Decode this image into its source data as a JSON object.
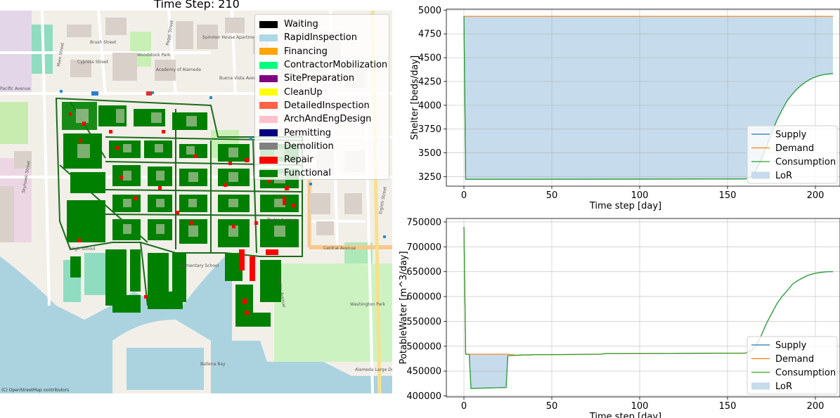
{
  "map": {
    "title": "Time Step: 210",
    "attribution": "(C) OpenStreetMap contributors",
    "street_labels": [
      "Brush Street",
      "Cypress Street",
      "Pacific Avenue",
      "Buena Vista Avenue",
      "Central Avenue",
      "Main Street",
      "Skyhawk Street",
      "High School",
      "Elementary School",
      "Washington Park",
      "Alameda Large Dog Park",
      "Ballena Bay",
      "Academy of Alameda",
      "Woodstock Park",
      "Summer House Apartments",
      "Eighth Street",
      "Poggi Street",
      "McKay Avenue",
      "Taylor Avenue"
    ],
    "legend": [
      {
        "label": "Waiting",
        "color": "#000000"
      },
      {
        "label": "RapidInspection",
        "color": "#add8e6"
      },
      {
        "label": "Financing",
        "color": "#ffa500"
      },
      {
        "label": "ContractorMobilization",
        "color": "#00ff7f"
      },
      {
        "label": "SitePreparation",
        "color": "#800080"
      },
      {
        "label": "CleanUp",
        "color": "#ffff00"
      },
      {
        "label": "DetailedInspection",
        "color": "#ff6347"
      },
      {
        "label": "ArchAndEngDesign",
        "color": "#ffc0cb"
      },
      {
        "label": "Permitting",
        "color": "#000080"
      },
      {
        "label": "Demolition",
        "color": "#808080"
      },
      {
        "label": "Repair",
        "color": "#ff0000"
      },
      {
        "label": "Functional",
        "color": "#008000"
      }
    ]
  },
  "chart_data": [
    {
      "type": "line",
      "xlabel": "Time step [day]",
      "ylabel": "Shelter [beds/day]",
      "xlim": [
        -10,
        214
      ],
      "ylim": [
        3150,
        5010
      ],
      "xticks": [
        0,
        50,
        100,
        150,
        200
      ],
      "yticks": [
        3250,
        3500,
        3750,
        4000,
        4250,
        4500,
        4750,
        5000
      ],
      "grid": true,
      "legend_position": "lower-right",
      "series": [
        {
          "name": "Supply",
          "color": "#1f77b4",
          "x": [
            0,
            1,
            160,
            163,
            166,
            169,
            172,
            175,
            178,
            181,
            184,
            187,
            190,
            193,
            196,
            199,
            202,
            205,
            208,
            210
          ],
          "y": [
            4935,
            3222,
            3225,
            3245,
            3310,
            3420,
            3560,
            3700,
            3840,
            3950,
            4050,
            4120,
            4180,
            4225,
            4262,
            4290,
            4310,
            4322,
            4330,
            4332
          ]
        },
        {
          "name": "Demand",
          "color": "#ff7f0e",
          "x": [
            0,
            210
          ],
          "y": [
            4935,
            4935
          ]
        },
        {
          "name": "Consumption",
          "color": "#2ca02c",
          "x": [
            0,
            1,
            160,
            163,
            166,
            169,
            172,
            175,
            178,
            181,
            184,
            187,
            190,
            193,
            196,
            199,
            202,
            205,
            208,
            210
          ],
          "y": [
            4935,
            3222,
            3225,
            3245,
            3310,
            3420,
            3560,
            3700,
            3840,
            3950,
            4050,
            4120,
            4180,
            4225,
            4262,
            4290,
            4310,
            4322,
            4330,
            4332
          ]
        }
      ],
      "lor": {
        "name": "LoR",
        "color": "#c6dbeb",
        "x_from": 0,
        "x_to": 210
      }
    },
    {
      "type": "line",
      "xlabel": "Time step [day]",
      "ylabel": "PotableWater [m^3/day]",
      "xlim": [
        -10,
        214
      ],
      "ylim": [
        398000,
        757000
      ],
      "xticks": [
        0,
        50,
        100,
        150,
        200
      ],
      "yticks": [
        400000,
        450000,
        500000,
        550000,
        600000,
        650000,
        700000,
        750000
      ],
      "grid": true,
      "legend_position": "lower-right",
      "series": [
        {
          "name": "Supply",
          "color": "#1f77b4",
          "x": [
            0,
            1,
            3,
            4,
            24,
            25,
            30,
            40,
            78,
            80,
            160,
            163,
            166,
            169,
            172,
            175,
            178,
            181,
            184,
            187,
            190,
            193,
            196,
            199,
            202,
            205,
            208,
            210
          ],
          "y": [
            740000,
            484000,
            484000,
            415000,
            417000,
            481000,
            482000,
            483000,
            484000,
            485000,
            486000,
            490000,
            500000,
            520000,
            545000,
            565000,
            585000,
            600000,
            612000,
            625000,
            632000,
            638000,
            643000,
            646000,
            648000,
            649500,
            650000,
            650000
          ]
        },
        {
          "name": "Demand",
          "color": "#ff7f0e",
          "x": [
            0,
            1,
            25,
            30,
            40,
            78,
            80,
            160
          ],
          "y": [
            740000,
            484000,
            484000,
            482000,
            483000,
            484000,
            485000,
            486000
          ]
        },
        {
          "name": "Consumption",
          "color": "#2ca02c",
          "x": [
            0,
            1,
            3,
            4,
            24,
            25,
            30,
            40,
            78,
            80,
            160,
            163,
            166,
            169,
            172,
            175,
            178,
            181,
            184,
            187,
            190,
            193,
            196,
            199,
            202,
            205,
            208,
            210
          ],
          "y": [
            740000,
            484000,
            484000,
            415000,
            417000,
            481000,
            482000,
            483000,
            484000,
            485000,
            486000,
            490000,
            500000,
            520000,
            545000,
            565000,
            585000,
            600000,
            612000,
            625000,
            632000,
            638000,
            643000,
            646000,
            648000,
            649500,
            650000,
            650000
          ]
        }
      ],
      "lor": {
        "name": "LoR",
        "color": "#c6dbeb",
        "x_from": 3,
        "x_to": 25
      }
    }
  ]
}
